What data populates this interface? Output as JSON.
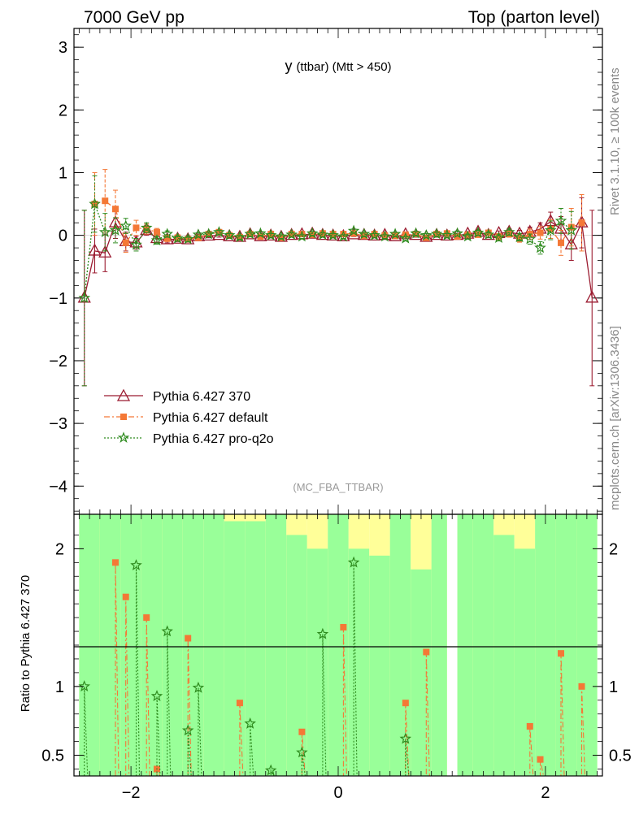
{
  "header": {
    "left": "7000 GeV pp",
    "right": "Top (parton level)"
  },
  "side": {
    "rivet": "Rivet 3.1.10, ≥ 100k events",
    "mcplots": "mcplots.cern.ch [arXiv:1306.3436]"
  },
  "chart_data": {
    "type": "line",
    "title": "y (ttbar) (Mtt > 450)",
    "title_main": "y",
    "title_sub": "(ttbar) (Mtt > 450)",
    "analysis_label": "(MC_FBA_TTBAR)",
    "ratio_ylabel": "Ratio to Pythia 6.427 370",
    "xlim": [
      -2.55,
      2.55
    ],
    "ylim_main": [
      -4.45,
      3.3
    ],
    "ylim_ratio": [
      0.35,
      2.25
    ],
    "x_ticks": [
      -2,
      0,
      2
    ],
    "x_tick_labels": [
      "−2",
      "0",
      "2"
    ],
    "y_ticks_main": [
      3,
      2,
      1,
      0,
      -1,
      -2,
      -3,
      -4
    ],
    "y_tick_labels_main": [
      "3",
      "2",
      "1",
      "0",
      "−1",
      "−2",
      "−3",
      "−4"
    ],
    "y_ticks_ratio": [
      2,
      1,
      0.5
    ],
    "y_tick_labels_ratio": [
      "2",
      "1",
      "0.5"
    ],
    "series": [
      {
        "name": "Pythia 6.427 370",
        "color": "#9b1b30",
        "x": [
          -2.45,
          -2.35,
          -2.25,
          -2.15,
          -2.05,
          -1.95,
          -1.85,
          -1.75,
          -1.65,
          -1.55,
          -1.45,
          -1.35,
          -1.25,
          -1.15,
          -1.05,
          -0.95,
          -0.85,
          -0.75,
          -0.65,
          -0.55,
          -0.45,
          -0.35,
          -0.25,
          -0.15,
          -0.05,
          0.05,
          0.15,
          0.25,
          0.35,
          0.45,
          0.55,
          0.65,
          0.75,
          0.85,
          0.95,
          1.05,
          1.15,
          1.25,
          1.35,
          1.45,
          1.55,
          1.65,
          1.75,
          1.85,
          1.95,
          2.05,
          2.15,
          2.25,
          2.35,
          2.45
        ],
        "y": [
          -1.0,
          -0.25,
          -0.28,
          0.2,
          -0.1,
          -0.12,
          0.08,
          -0.05,
          -0.07,
          -0.06,
          -0.07,
          -0.02,
          -0.01,
          0.0,
          -0.02,
          -0.03,
          0.01,
          -0.02,
          -0.01,
          -0.03,
          0.0,
          0.01,
          0.02,
          0.0,
          -0.01,
          -0.02,
          0.01,
          0.0,
          -0.01,
          0.0,
          -0.02,
          0.01,
          0.0,
          -0.03,
          0.0,
          -0.01,
          0.0,
          0.02,
          0.05,
          0.0,
          0.03,
          0.05,
          0.02,
          0.05,
          0.1,
          0.22,
          0.1,
          -0.15,
          0.2,
          -1.0
        ],
        "err": [
          1.4,
          0.35,
          0.3,
          0.25,
          0.15,
          0.1,
          0.08,
          0.06,
          0.05,
          0.04,
          0.04,
          0.04,
          0.03,
          0.03,
          0.03,
          0.03,
          0.03,
          0.03,
          0.03,
          0.03,
          0.03,
          0.03,
          0.03,
          0.03,
          0.03,
          0.03,
          0.03,
          0.03,
          0.03,
          0.03,
          0.03,
          0.03,
          0.03,
          0.03,
          0.03,
          0.03,
          0.03,
          0.04,
          0.04,
          0.04,
          0.04,
          0.05,
          0.06,
          0.08,
          0.1,
          0.15,
          0.2,
          0.25,
          0.4,
          1.4
        ]
      },
      {
        "name": "Pythia 6.427 default",
        "color": "#f47836",
        "x": [
          -2.35,
          -2.25,
          -2.15,
          -2.05,
          -1.95,
          -1.85,
          -1.75,
          -1.65,
          -1.55,
          -1.45,
          -1.35,
          -1.25,
          -1.15,
          -1.05,
          -0.95,
          -0.85,
          -0.75,
          -0.65,
          -0.55,
          -0.45,
          -0.35,
          -0.25,
          -0.15,
          -0.05,
          0.05,
          0.15,
          0.25,
          0.35,
          0.45,
          0.55,
          0.65,
          0.75,
          0.85,
          0.95,
          1.05,
          1.15,
          1.25,
          1.35,
          1.45,
          1.55,
          1.65,
          1.75,
          1.85,
          1.95,
          2.05,
          2.15,
          2.25,
          2.35
        ],
        "y": [
          0.5,
          0.55,
          0.42,
          -0.12,
          0.12,
          0.1,
          0.05,
          -0.05,
          -0.04,
          -0.06,
          -0.04,
          0.02,
          0.05,
          0.0,
          -0.03,
          0.02,
          -0.02,
          0.02,
          -0.04,
          0.02,
          0.02,
          0.01,
          0.03,
          0.02,
          0.02,
          0.03,
          -0.01,
          0.02,
          0.0,
          -0.01,
          0.01,
          0.02,
          -0.04,
          0.02,
          0.03,
          -0.02,
          0.01,
          0.01,
          0.04,
          -0.02,
          0.02,
          -0.05,
          0.02,
          0.04,
          0.1,
          -0.12,
          0.13,
          0.2
        ],
        "err": [
          0.5,
          0.5,
          0.3,
          0.15,
          0.12,
          0.08,
          0.06,
          0.05,
          0.05,
          0.04,
          0.04,
          0.03,
          0.03,
          0.03,
          0.03,
          0.03,
          0.03,
          0.03,
          0.03,
          0.03,
          0.03,
          0.03,
          0.03,
          0.03,
          0.03,
          0.03,
          0.03,
          0.03,
          0.03,
          0.03,
          0.03,
          0.03,
          0.03,
          0.03,
          0.03,
          0.03,
          0.04,
          0.04,
          0.04,
          0.05,
          0.05,
          0.06,
          0.08,
          0.1,
          0.15,
          0.2,
          0.3,
          0.45
        ]
      },
      {
        "name": "Pythia 6.427 pro-q2o",
        "color": "#2e8b1e",
        "x": [
          -2.45,
          -2.35,
          -2.25,
          -2.15,
          -2.05,
          -1.95,
          -1.85,
          -1.75,
          -1.65,
          -1.55,
          -1.45,
          -1.35,
          -1.25,
          -1.15,
          -1.05,
          -0.95,
          -0.85,
          -0.75,
          -0.65,
          -0.55,
          -0.45,
          -0.35,
          -0.25,
          -0.15,
          -0.05,
          0.05,
          0.15,
          0.25,
          0.35,
          0.45,
          0.55,
          0.65,
          0.75,
          0.85,
          0.95,
          1.05,
          1.15,
          1.25,
          1.35,
          1.45,
          1.55,
          1.65,
          1.75,
          1.85,
          1.95,
          2.05,
          2.15,
          2.25
        ],
        "y": [
          -1.0,
          0.5,
          0.05,
          0.08,
          0.15,
          -0.15,
          0.12,
          -0.08,
          0.02,
          -0.05,
          -0.06,
          0.01,
          0.02,
          0.05,
          0.0,
          -0.03,
          0.02,
          0.03,
          0.0,
          -0.02,
          0.01,
          -0.02,
          0.03,
          0.01,
          0.0,
          -0.02,
          0.07,
          0.02,
          0.0,
          -0.02,
          0.02,
          -0.05,
          0.03,
          0.0,
          0.02,
          0.0,
          0.03,
          -0.02,
          0.04,
          0.01,
          -0.04,
          0.05,
          -0.03,
          -0.06,
          -0.2,
          0.08,
          0.23,
          0.08
        ],
        "err": [
          1.4,
          0.45,
          0.3,
          0.2,
          0.12,
          0.1,
          0.08,
          0.06,
          0.05,
          0.04,
          0.04,
          0.03,
          0.03,
          0.03,
          0.03,
          0.03,
          0.03,
          0.03,
          0.03,
          0.03,
          0.03,
          0.03,
          0.03,
          0.03,
          0.03,
          0.03,
          0.03,
          0.03,
          0.03,
          0.03,
          0.03,
          0.03,
          0.03,
          0.03,
          0.03,
          0.03,
          0.04,
          0.04,
          0.04,
          0.04,
          0.05,
          0.05,
          0.06,
          0.08,
          0.1,
          0.15,
          0.2,
          0.3
        ]
      }
    ],
    "ratio_band_edges": [
      -2.5,
      -2.3,
      -2.1,
      -1.9,
      -1.7,
      -1.5,
      -1.3,
      -1.1,
      -0.9,
      -0.7,
      -0.5,
      -0.3,
      -0.1,
      0.1,
      0.3,
      0.5,
      0.7,
      0.9,
      1.05,
      1.15,
      1.3,
      1.5,
      1.7,
      1.9,
      2.1,
      2.3,
      2.5
    ],
    "ratio_band_green": [
      2.25,
      2.25,
      2.25,
      2.25,
      2.25,
      2.25,
      2.25,
      2.2,
      2.2,
      2.25,
      2.1,
      2.0,
      2.25,
      2.0,
      1.95,
      2.25,
      1.85,
      2.25,
      0.0,
      2.25,
      2.25,
      2.1,
      2.0,
      2.25,
      2.25,
      2.25
    ],
    "ratio_band_yellow": [
      2.25,
      2.25,
      2.25,
      2.25,
      2.25,
      2.25,
      2.25,
      2.25,
      2.25,
      2.25,
      2.25,
      2.25,
      2.25,
      2.25,
      2.25,
      2.25,
      2.25,
      2.25,
      0.0,
      2.25,
      2.25,
      2.25,
      2.25,
      2.25,
      2.25,
      2.25
    ],
    "ratio_series": [
      {
        "name": "Pythia 6.427 default",
        "x": [
          -2.15,
          -2.05,
          -1.85,
          -1.75,
          -1.45,
          -0.95,
          -0.35,
          0.05,
          0.65,
          0.85,
          1.85,
          1.95,
          2.15,
          2.35
        ],
        "y": [
          1.9,
          1.65,
          1.5,
          0.4,
          1.35,
          0.88,
          0.67,
          1.43,
          0.88,
          1.25,
          0.71,
          0.47,
          1.24,
          1.0
        ]
      },
      {
        "name": "Pythia 6.427 pro-q2o",
        "x": [
          -2.45,
          -1.95,
          -1.75,
          -1.65,
          -1.45,
          -1.35,
          -0.85,
          -0.65,
          -0.35,
          -0.15,
          0.15,
          0.65
        ],
        "y": [
          1.0,
          1.88,
          0.93,
          1.4,
          0.68,
          0.99,
          0.73,
          0.39,
          0.52,
          1.38,
          1.9,
          0.62
        ]
      }
    ]
  }
}
